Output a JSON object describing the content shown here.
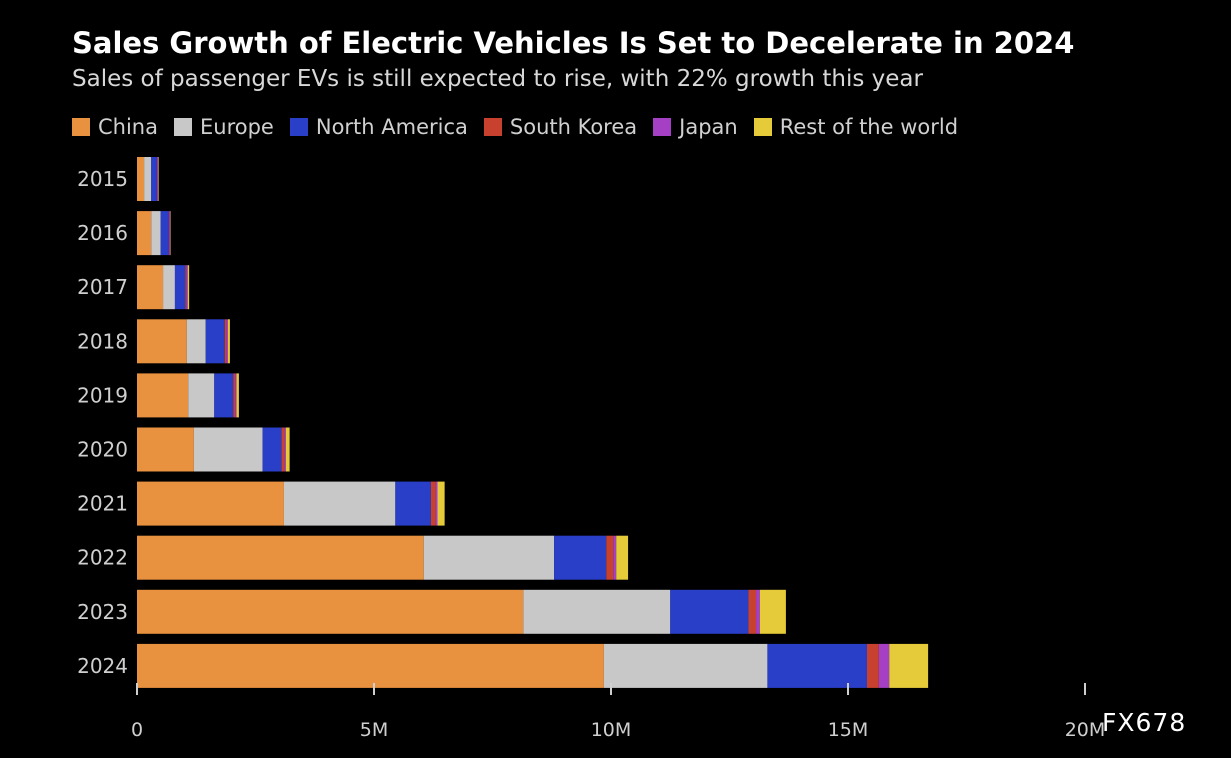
{
  "chart_data": {
    "type": "bar",
    "orientation": "horizontal",
    "stacked": true,
    "title": "Sales Growth of Electric Vehicles Is Set to Decelerate in 2024",
    "subtitle": "Sales of passenger EVs is still expected to rise, with 22% growth this year",
    "categories": [
      "2015",
      "2016",
      "2017",
      "2018",
      "2019",
      "2020",
      "2021",
      "2022",
      "2023",
      "2024"
    ],
    "series": [
      {
        "name": "China",
        "color": "#e8913f",
        "values": [
          0.15,
          0.3,
          0.55,
          1.05,
          1.08,
          1.2,
          3.1,
          6.05,
          8.15,
          9.85
        ]
      },
      {
        "name": "Europe",
        "color": "#c8c8c8",
        "values": [
          0.15,
          0.2,
          0.25,
          0.4,
          0.55,
          1.45,
          2.35,
          2.75,
          3.1,
          3.45
        ]
      },
      {
        "name": "North America",
        "color": "#2a3fc7",
        "values": [
          0.12,
          0.17,
          0.22,
          0.4,
          0.4,
          0.4,
          0.75,
          1.1,
          1.65,
          2.1
        ]
      },
      {
        "name": "South Korea",
        "color": "#c8412f",
        "values": [
          0.01,
          0.01,
          0.02,
          0.04,
          0.04,
          0.06,
          0.1,
          0.15,
          0.16,
          0.25
        ]
      },
      {
        "name": "Japan",
        "color": "#a53fc4",
        "values": [
          0.02,
          0.02,
          0.03,
          0.03,
          0.03,
          0.03,
          0.04,
          0.06,
          0.08,
          0.22
        ]
      },
      {
        "name": "Rest of the world",
        "color": "#e5cb3a",
        "values": [
          0.01,
          0.01,
          0.03,
          0.04,
          0.05,
          0.08,
          0.15,
          0.25,
          0.55,
          0.82
        ]
      }
    ],
    "xlim": [
      0,
      20
    ],
    "x_unit": "M",
    "x_ticks": [
      {
        "value": 0,
        "label": "0"
      },
      {
        "value": 5,
        "label": "5M"
      },
      {
        "value": 10,
        "label": "10M"
      },
      {
        "value": 15,
        "label": "15M"
      },
      {
        "value": 20,
        "label": "20M"
      }
    ],
    "grid": false,
    "legend_position": "top"
  },
  "watermark": "FX678"
}
